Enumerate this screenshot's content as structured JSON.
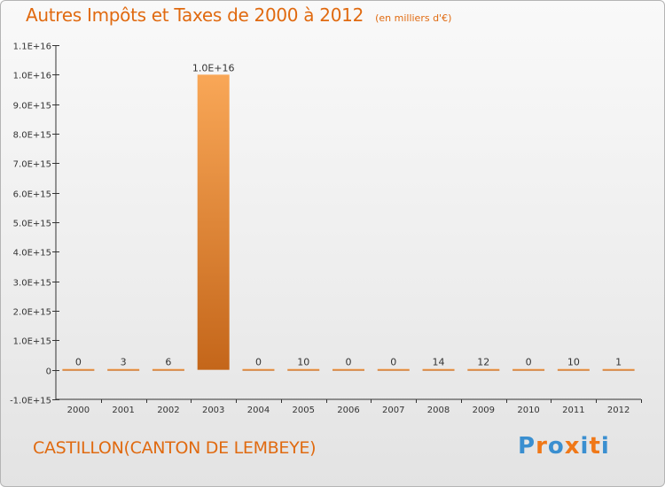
{
  "title": "Autres Impôts et Taxes de 2000 à 2012",
  "unit": "(en milliers d'€)",
  "commune": "CASTILLON(CANTON DE LEMBEYE)",
  "logo": {
    "text": "Proxiti",
    "colors": [
      "#3a8fd0",
      "#f07818",
      "#3a8fd0",
      "#f07818",
      "#3a8fd0",
      "#f07818",
      "#3a8fd0"
    ]
  },
  "colors": {
    "title": "#e06a10",
    "bar_light": "#f9a757",
    "bar_dark": "#c4661a",
    "axis": "#333333"
  },
  "chart_data": {
    "type": "bar",
    "categories": [
      "2000",
      "2001",
      "2002",
      "2003",
      "2004",
      "2005",
      "2006",
      "2007",
      "2008",
      "2009",
      "2010",
      "2011",
      "2012"
    ],
    "values": [
      0,
      3,
      6,
      1e+16,
      0,
      10,
      0,
      0,
      14,
      12,
      0,
      10,
      1
    ],
    "value_labels": [
      "0",
      "3",
      "6",
      "1.0E+16",
      "0",
      "10",
      "0",
      "0",
      "14",
      "12",
      "0",
      "10",
      "1"
    ],
    "ylim": [
      -1000000000000000.0,
      1.1e+16
    ],
    "yticks": [
      -1000000000000000.0,
      0,
      1000000000000000.0,
      2000000000000000.0,
      3000000000000000.0,
      4000000000000000.0,
      5000000000000000.0,
      6000000000000000.0,
      7000000000000000.0,
      8000000000000000.0,
      9000000000000000.0,
      1e+16,
      1.1e+16
    ],
    "ytick_labels": [
      "-1.0E+15",
      "0",
      "1.0E+15",
      "2.0E+15",
      "3.0E+15",
      "4.0E+15",
      "5.0E+15",
      "6.0E+15",
      "7.0E+15",
      "8.0E+15",
      "9.0E+15",
      "1.0E+16",
      "1.1E+16"
    ],
    "grid": false,
    "xlabel": "",
    "ylabel": ""
  }
}
